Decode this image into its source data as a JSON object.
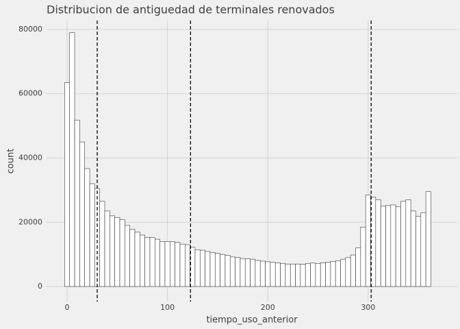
{
  "chart_data": {
    "type": "histogram",
    "title": "Distribucion de antiguedad de terminales renovados",
    "xlabel": "tiempo_uso_anterior",
    "ylabel": "count",
    "bins": [
      -2.5,
      2.5,
      7.5,
      12.5,
      17.5,
      22.5,
      27.5,
      32.5,
      37.5,
      42.5,
      47.5,
      52.5,
      57.5,
      62.5,
      67.5,
      72.5,
      77.5,
      82.5,
      87.5,
      92.5,
      97.5,
      102.5,
      107.5,
      112.5,
      117.5,
      122.5,
      127.5,
      132.5,
      137.5,
      142.5,
      147.5,
      152.5,
      157.5,
      162.5,
      167.5,
      172.5,
      177.5,
      182.5,
      187.5,
      192.5,
      197.5,
      202.5,
      207.5,
      212.5,
      217.5,
      222.5,
      227.5,
      232.5,
      237.5,
      242.5,
      247.5,
      252.5,
      257.5,
      262.5,
      267.5,
      272.5,
      277.5,
      282.5,
      287.5,
      292.5,
      297.5,
      302.5,
      307.5,
      312.5,
      317.5,
      322.5,
      327.5,
      332.5,
      337.5,
      342.5,
      347.5,
      352.5,
      357.5,
      362.5
    ],
    "values": [
      63500,
      79000,
      51800,
      45000,
      36700,
      32000,
      30500,
      26500,
      23500,
      22000,
      21500,
      20800,
      19000,
      17800,
      17000,
      16000,
      15300,
      15200,
      14700,
      14000,
      14000,
      14000,
      13700,
      13200,
      13000,
      12200,
      11400,
      11300,
      10900,
      10600,
      10300,
      10000,
      9700,
      9200,
      9100,
      8700,
      8600,
      8500,
      8100,
      7900,
      7700,
      7500,
      7400,
      7200,
      7000,
      7000,
      7000,
      6900,
      7100,
      7300,
      7100,
      7400,
      7600,
      7800,
      8000,
      8500,
      9000,
      9800,
      12000,
      18500,
      28500,
      27800,
      27000,
      25000,
      25200,
      25400,
      24800,
      26500,
      27000,
      23500,
      21800,
      23000,
      29500
    ],
    "vlines": [
      30,
      123,
      303
    ],
    "color": "#ffffff",
    "edgecolor": "#333333",
    "xlim": [
      -20.5,
      388.8
    ],
    "ylim": [
      -4693,
      82773
    ],
    "xticks": [
      0,
      100,
      200,
      300
    ],
    "yticks": [
      0,
      20000,
      40000,
      60000,
      80000
    ],
    "grid": true
  }
}
